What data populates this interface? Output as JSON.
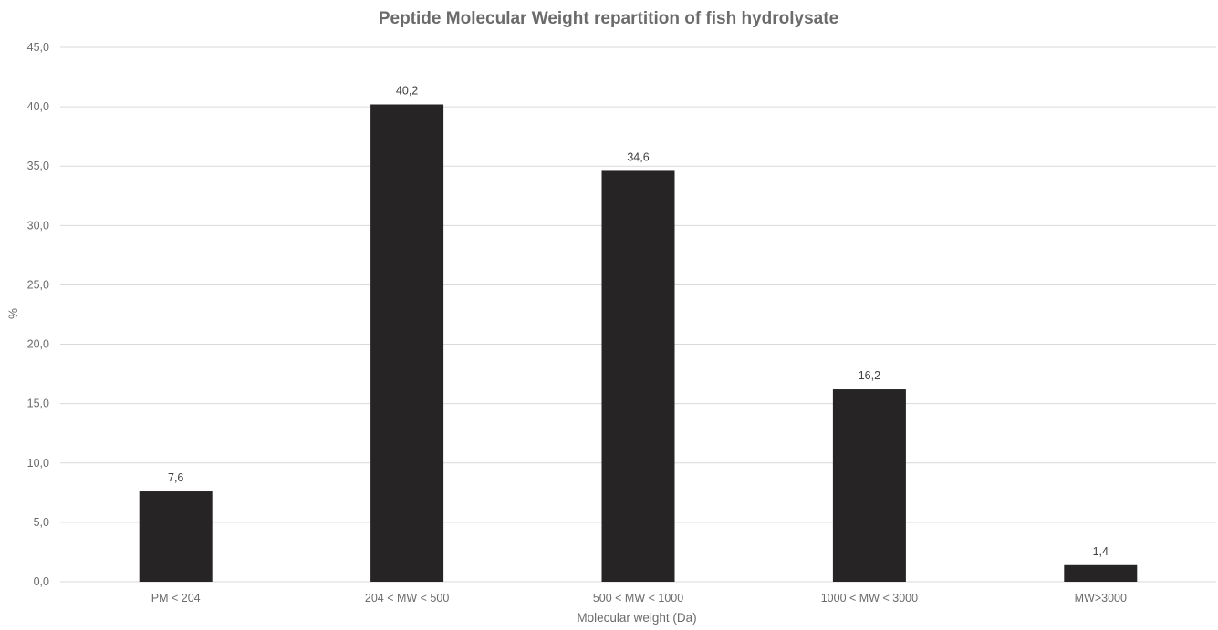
{
  "chart_data": {
    "type": "bar",
    "title": "Peptide Molecular Weight repartition of fish hydrolysate",
    "xlabel": "Molecular weight (Da)",
    "ylabel": "%",
    "categories": [
      "PM < 204",
      "204 < MW < 500",
      "500 < MW < 1000",
      "1000 < MW < 3000",
      "MW>3000"
    ],
    "values": [
      7.6,
      40.2,
      34.6,
      16.2,
      1.4
    ],
    "value_labels": [
      "7,6",
      "40,2",
      "34,6",
      "16,2",
      "1,4"
    ],
    "ylim": [
      0,
      45
    ],
    "y_ticks": [
      "0,0",
      "5,0",
      "10,0",
      "15,0",
      "20,0",
      "25,0",
      "30,0",
      "35,0",
      "40,0",
      "45,0"
    ],
    "y_tick_values": [
      0,
      5,
      10,
      15,
      20,
      25,
      30,
      35,
      40,
      45
    ],
    "grid": true,
    "legend": "none",
    "bar_color": "#262424",
    "grid_color": "#d9d9d9"
  }
}
